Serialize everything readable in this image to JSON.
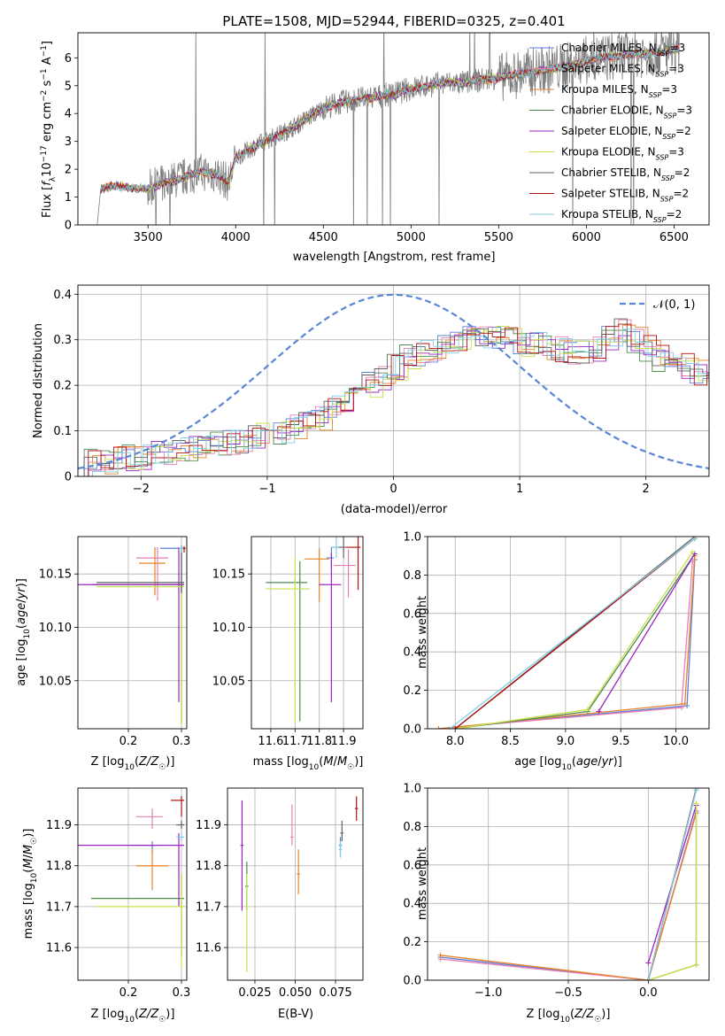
{
  "colors": {
    "Chabrier MILES": "#5a7fd8",
    "Salpeter MILES": "#e87fb4",
    "Kroupa MILES": "#e8832a",
    "Chabrier ELODIE": "#4c8a4c",
    "Salpeter ELODIE": "#9b25c0",
    "Kroupa ELODIE": "#c8e04a",
    "Chabrier STELIB": "#606060",
    "Salpeter STELIB": "#b01010",
    "Kroupa STELIB": "#7fd0e8",
    "data": "#808080",
    "normal": "#5a86d6"
  },
  "chart_data": [
    {
      "type": "line",
      "title": "PLATE=1508, MJD=52944, FIBERID=0325, z=0.401",
      "xlabel": "wavelength [Angstrom, rest frame]",
      "ylabel": "Flux [f_λ 10^-17 erg cm^-2 s^-1 A^-1]",
      "xlim": [
        3100,
        6700
      ],
      "ylim": [
        0,
        6.9
      ],
      "xticks": [
        3500,
        4000,
        4500,
        5000,
        5500,
        6000,
        6500
      ],
      "yticks": [
        0,
        1,
        2,
        3,
        4,
        5,
        6
      ],
      "continuum_x": [
        3210,
        3230,
        3300,
        3400,
        3500,
        3600,
        3700,
        3800,
        3900,
        3960,
        4000,
        4100,
        4200,
        4300,
        4400,
        4500,
        4600,
        4700,
        4800,
        4900,
        5000,
        5100,
        5200,
        5300,
        5400,
        5500,
        5600,
        5700,
        5800,
        5900,
        6000,
        6100,
        6200,
        6300,
        6400,
        6500,
        6530
      ],
      "continuum_y": [
        0.0,
        1.3,
        1.4,
        1.35,
        1.3,
        1.5,
        1.7,
        1.9,
        1.8,
        1.5,
        2.4,
        2.8,
        3.1,
        3.4,
        3.8,
        4.2,
        4.4,
        4.5,
        4.6,
        4.7,
        4.9,
        5.0,
        5.1,
        5.1,
        5.2,
        5.3,
        5.4,
        5.5,
        5.6,
        5.7,
        5.9,
        6.0,
        6.1,
        6.15,
        6.2,
        6.3,
        6.3
      ],
      "legend_position": "upper-right",
      "legend": [
        "Chabrier MILES, N_SSP=3",
        "Salpeter MILES, N_SSP=3",
        "Kroupa MILES, N_SSP=3",
        "Chabrier ELODIE, N_SSP=3",
        "Salpeter ELODIE, N_SSP=2",
        "Kroupa ELODIE, N_SSP=3",
        "Chabrier STELIB, N_SSP=2",
        "Salpeter STELIB, N_SSP=2",
        "Kroupa STELIB, N_SSP=2"
      ]
    },
    {
      "type": "histogram",
      "xlabel": "(data-model)/error",
      "ylabel": "Normed distribution",
      "xlim": [
        -2.5,
        2.5
      ],
      "ylim": [
        0,
        0.42
      ],
      "xticks": [
        -2,
        -1,
        0,
        1,
        2
      ],
      "yticks": [
        0.0,
        0.1,
        0.2,
        0.3,
        0.4
      ],
      "normal_legend": "𝒩(0, 1)",
      "bin_width": 0.1,
      "envelope": [
        0.025,
        0.03,
        0.035,
        0.04,
        0.04,
        0.045,
        0.05,
        0.05,
        0.055,
        0.06,
        0.065,
        0.07,
        0.075,
        0.08,
        0.09,
        0.1,
        0.1,
        0.11,
        0.12,
        0.13,
        0.15,
        0.17,
        0.19,
        0.2,
        0.22,
        0.24,
        0.26,
        0.27,
        0.28,
        0.29,
        0.29,
        0.3,
        0.3,
        0.31,
        0.3,
        0.29,
        0.29,
        0.28,
        0.28,
        0.27,
        0.27,
        0.28,
        0.3,
        0.32,
        0.3,
        0.28,
        0.26,
        0.25,
        0.24,
        0.23,
        0.22,
        0.21,
        0.2,
        0.18,
        0.17,
        0.16,
        0.15,
        0.14,
        0.13,
        0.12,
        0.11,
        0.1,
        0.1,
        0.09,
        0.08,
        0.08,
        0.07,
        0.07,
        0.06,
        0.06
      ]
    },
    {
      "type": "errorbar",
      "xlabel": "Z [log10(Z/Z☉)]",
      "ylabel": "age  [log10(age/yr)]",
      "xlim": [
        0.105,
        0.31
      ],
      "ylim": [
        10.005,
        10.185
      ],
      "xticks": [
        0.2,
        0.3
      ],
      "xtick_labels": [
        "0.2",
        "0.3"
      ],
      "yticks": [
        10.05,
        10.1,
        10.15
      ],
      "ytick_labels": [
        "10.05",
        "10.10",
        "10.15"
      ],
      "points": [
        {
          "series": "Chabrier MILES",
          "x": 0.3,
          "y": 10.174,
          "ex": [
            0.04,
            0.005
          ],
          "ey": [
            0.005,
            0.003
          ]
        },
        {
          "series": "Salpeter MILES",
          "x": 0.255,
          "y": 10.165,
          "ex": [
            0.04,
            0.02
          ],
          "ey": [
            0.04,
            0.01
          ]
        },
        {
          "series": "Kroupa MILES",
          "x": 0.25,
          "y": 10.16,
          "ex": [
            0.03,
            0.02
          ],
          "ey": [
            0.03,
            0.015
          ]
        },
        {
          "series": "Chabrier ELODIE",
          "x": 0.3,
          "y": 10.14,
          "ex": [
            0.17,
            0.005
          ],
          "ey": [
            0.13,
            0.035
          ]
        },
        {
          "series": "Salpeter ELODIE",
          "x": 0.295,
          "y": 10.14,
          "ex": [
            0.19,
            0.01
          ],
          "ey": [
            0.11,
            0.035
          ]
        },
        {
          "series": "Kroupa ELODIE",
          "x": 0.3,
          "y": 10.138,
          "ex": [
            0.16,
            0.005
          ],
          "ey": [
            0.13,
            0.037
          ]
        },
        {
          "series": "Chabrier STELIB",
          "x": 0.3,
          "y": 10.142,
          "ex": [
            0.16,
            0.005
          ],
          "ey": [
            0.01,
            0.033
          ]
        },
        {
          "series": "Salpeter STELIB",
          "x": 0.305,
          "y": 10.174,
          "ex": [
            0.005,
            0.003
          ],
          "ey": [
            0.004,
            0.002
          ]
        },
        {
          "series": "Kroupa STELIB",
          "x": 0.3,
          "y": 10.174,
          "ex": [
            0.005,
            0.003
          ],
          "ey": [
            0.004,
            0.002
          ]
        }
      ]
    },
    {
      "type": "errorbar",
      "xlabel": "mass [log10(M/M☉)]",
      "ylabel": "",
      "xlim": [
        11.52,
        11.98
      ],
      "ylim": [
        10.005,
        10.185
      ],
      "xticks": [
        11.6,
        11.7,
        11.8,
        11.9
      ],
      "xtick_labels": [
        "11.6",
        "11.7",
        "11.8",
        "11.9"
      ],
      "yticks": [
        10.05,
        10.1,
        10.15
      ],
      "ytick_labels": [
        "10.05",
        "10.10",
        "10.15"
      ],
      "points": [
        {
          "series": "Chabrier MILES",
          "x": 11.85,
          "y": 10.165,
          "ex": [
            0.02,
            0.01
          ],
          "ey": [
            0.01,
            0.01
          ]
        },
        {
          "series": "Salpeter MILES",
          "x": 11.92,
          "y": 10.158,
          "ex": [
            0.06,
            0.03
          ],
          "ey": [
            0.03,
            0.015
          ]
        },
        {
          "series": "Kroupa MILES",
          "x": 11.8,
          "y": 10.164,
          "ex": [
            0.06,
            0.04
          ],
          "ey": [
            0.04,
            0.01
          ]
        },
        {
          "series": "Chabrier ELODIE",
          "x": 11.72,
          "y": 10.142,
          "ex": [
            0.14,
            0.03
          ],
          "ey": [
            0.13,
            0.02
          ]
        },
        {
          "series": "Salpeter ELODIE",
          "x": 11.85,
          "y": 10.14,
          "ex": [
            0.05,
            0.04
          ],
          "ey": [
            0.11,
            0.03
          ]
        },
        {
          "series": "Kroupa ELODIE",
          "x": 11.7,
          "y": 10.136,
          "ex": [
            0.12,
            0.06
          ],
          "ey": [
            0.125,
            0.03
          ]
        },
        {
          "series": "Chabrier STELIB",
          "x": 11.9,
          "y": 10.175,
          "ex": [
            0.05,
            0.01
          ],
          "ey": [
            0.01,
            0.01
          ]
        },
        {
          "series": "Salpeter STELIB",
          "x": 11.96,
          "y": 10.175,
          "ex": [
            0.05,
            0.01
          ],
          "ey": [
            0.04,
            0.01
          ]
        },
        {
          "series": "Kroupa STELIB",
          "x": 11.87,
          "y": 10.175,
          "ex": [
            0.02,
            0.01
          ],
          "ey": [
            0.01,
            0.01
          ]
        }
      ]
    },
    {
      "type": "line",
      "xlabel": "age  [log10(age/yr)]",
      "ylabel": "mass weight",
      "xlim": [
        7.75,
        10.3
      ],
      "ylim": [
        0,
        1
      ],
      "xticks": [
        8.0,
        8.5,
        9.0,
        9.5,
        10.0
      ],
      "xtick_labels": [
        "8.0",
        "8.5",
        "9.0",
        "9.5",
        "10.0"
      ],
      "yticks": [
        0,
        0.2,
        0.4,
        0.6,
        0.8,
        1.0
      ],
      "ytick_labels": [
        "0.0",
        "0.2",
        "0.4",
        "0.6",
        "0.8",
        "1.0"
      ],
      "series": [
        {
          "name": "Chabrier MILES",
          "x": [
            7.85,
            10.1,
            10.17
          ],
          "y": [
            0.0,
            0.12,
            0.88
          ]
        },
        {
          "name": "Salpeter MILES",
          "x": [
            7.85,
            10.05,
            10.15
          ],
          "y": [
            0.0,
            0.11,
            0.87
          ]
        },
        {
          "name": "Kroupa MILES",
          "x": [
            7.85,
            10.08,
            10.17
          ],
          "y": [
            0.0,
            0.13,
            0.9
          ]
        },
        {
          "name": "Chabrier ELODIE",
          "x": [
            8.0,
            9.2,
            10.17
          ],
          "y": [
            0.0,
            0.09,
            0.91
          ]
        },
        {
          "name": "Salpeter ELODIE",
          "x": [
            9.3,
            10.17
          ],
          "y": [
            0.09,
            0.91
          ]
        },
        {
          "name": "Kroupa ELODIE",
          "x": [
            8.0,
            9.2,
            10.15
          ],
          "y": [
            0.0,
            0.1,
            0.92
          ]
        },
        {
          "name": "Chabrier STELIB",
          "x": [
            8.0,
            10.17
          ],
          "y": [
            0.0,
            1.0
          ]
        },
        {
          "name": "Salpeter STELIB",
          "x": [
            8.0,
            10.17
          ],
          "y": [
            0.0,
            0.99
          ]
        },
        {
          "name": "Kroupa STELIB",
          "x": [
            7.95,
            10.17
          ],
          "y": [
            0.0,
            0.99
          ]
        }
      ]
    },
    {
      "type": "errorbar",
      "xlabel": "Z [log10(Z/Z☉)]",
      "ylabel": "mass [log10(M/M☉)]",
      "xlim": [
        0.105,
        0.31
      ],
      "ylim": [
        11.52,
        11.99
      ],
      "xticks": [
        0.2,
        0.3
      ],
      "xtick_labels": [
        "0.2",
        "0.3"
      ],
      "yticks": [
        11.6,
        11.7,
        11.8,
        11.9
      ],
      "ytick_labels": [
        "11.6",
        "11.7",
        "11.8",
        "11.9"
      ],
      "points": [
        {
          "series": "Chabrier MILES",
          "x": 0.245,
          "y": 11.85,
          "ex": [
            0.04,
            0.01
          ],
          "ey": [
            0.02,
            0.01
          ]
        },
        {
          "series": "Salpeter MILES",
          "x": 0.245,
          "y": 11.92,
          "ex": [
            0.03,
            0.02
          ],
          "ey": [
            0.03,
            0.02
          ]
        },
        {
          "series": "Kroupa MILES",
          "x": 0.245,
          "y": 11.8,
          "ex": [
            0.03,
            0.03
          ],
          "ey": [
            0.06,
            0.04
          ]
        },
        {
          "series": "Chabrier ELODIE",
          "x": 0.3,
          "y": 11.72,
          "ex": [
            0.17,
            0.005
          ],
          "ey": [
            0.14,
            0.06
          ]
        },
        {
          "series": "Salpeter ELODIE",
          "x": 0.295,
          "y": 11.85,
          "ex": [
            0.19,
            0.01
          ],
          "ey": [
            0.15,
            0.03
          ]
        },
        {
          "series": "Kroupa ELODIE",
          "x": 0.3,
          "y": 11.7,
          "ex": [
            0.16,
            0.005
          ],
          "ey": [
            0.15,
            0.08
          ]
        },
        {
          "series": "Chabrier STELIB",
          "x": 0.3,
          "y": 11.9,
          "ex": [
            0.01,
            0.005
          ],
          "ey": [
            0.01,
            0.01
          ]
        },
        {
          "series": "Salpeter STELIB",
          "x": 0.3,
          "y": 11.96,
          "ex": [
            0.02,
            0.005
          ],
          "ey": [
            0.04,
            0.01
          ]
        },
        {
          "series": "Kroupa STELIB",
          "x": 0.3,
          "y": 11.87,
          "ex": [
            0.01,
            0.005
          ],
          "ey": [
            0.01,
            0.01
          ]
        }
      ]
    },
    {
      "type": "errorbar",
      "xlabel": "E(B-V)",
      "ylabel": "",
      "xlim": [
        0.008,
        0.092
      ],
      "ylim": [
        11.52,
        11.99
      ],
      "xticks": [
        0.025,
        0.05,
        0.075
      ],
      "xtick_labels": [
        "0.025",
        "0.050",
        "0.075"
      ],
      "yticks": [
        11.6,
        11.7,
        11.8,
        11.9
      ],
      "ytick_labels": [
        "11.6",
        "11.7",
        "11.8",
        "11.9"
      ],
      "points": [
        {
          "series": "Chabrier MILES",
          "x": 0.078,
          "y": 11.85,
          "ex": [
            0.001,
            0.001
          ],
          "ey": [
            0.03,
            0.02
          ]
        },
        {
          "series": "Salpeter MILES",
          "x": 0.048,
          "y": 11.87,
          "ex": [
            0.001,
            0.001
          ],
          "ey": [
            0.02,
            0.08
          ]
        },
        {
          "series": "Kroupa MILES",
          "x": 0.052,
          "y": 11.78,
          "ex": [
            0.001,
            0.001
          ],
          "ey": [
            0.05,
            0.06
          ]
        },
        {
          "series": "Chabrier ELODIE",
          "x": 0.02,
          "y": 11.75,
          "ex": [
            0.001,
            0.001
          ],
          "ey": [
            0.06,
            0.06
          ]
        },
        {
          "series": "Salpeter ELODIE",
          "x": 0.017,
          "y": 11.85,
          "ex": [
            0.001,
            0.001
          ],
          "ey": [
            0.16,
            0.11
          ]
        },
        {
          "series": "Kroupa ELODIE",
          "x": 0.02,
          "y": 11.7,
          "ex": [
            0.001,
            0.001
          ],
          "ey": [
            0.16,
            0.08
          ]
        },
        {
          "series": "Chabrier STELIB",
          "x": 0.079,
          "y": 11.88,
          "ex": [
            0.001,
            0.001
          ],
          "ey": [
            0.02,
            0.03
          ]
        },
        {
          "series": "Salpeter STELIB",
          "x": 0.088,
          "y": 11.94,
          "ex": [
            0.001,
            0.001
          ],
          "ey": [
            0.03,
            0.03
          ]
        },
        {
          "series": "Kroupa STELIB",
          "x": 0.078,
          "y": 11.84,
          "ex": [
            0.001,
            0.001
          ],
          "ey": [
            0.02,
            0.02
          ]
        }
      ]
    },
    {
      "type": "line",
      "xlabel": "Z [log10(Z/Z☉)]",
      "ylabel": "mass weight",
      "xlim": [
        -1.38,
        0.38
      ],
      "ylim": [
        0,
        1
      ],
      "xticks": [
        -1.0,
        -0.5,
        0.0
      ],
      "xtick_labels": [
        "−1.0",
        "−0.5",
        "0.0"
      ],
      "yticks": [
        0,
        0.2,
        0.4,
        0.6,
        0.8,
        1.0
      ],
      "ytick_labels": [
        "0.0",
        "0.2",
        "0.4",
        "0.6",
        "0.8",
        "1.0"
      ],
      "series": [
        {
          "name": "Chabrier MILES",
          "x": [
            -1.3,
            0.0,
            0.3
          ],
          "y": [
            0.12,
            0.0,
            0.88
          ]
        },
        {
          "name": "Salpeter MILES",
          "x": [
            -1.3,
            0.0,
            0.3
          ],
          "y": [
            0.11,
            0.0,
            0.87
          ]
        },
        {
          "name": "Kroupa MILES",
          "x": [
            -1.3,
            0.0,
            0.3
          ],
          "y": [
            0.13,
            0.0,
            0.87
          ]
        },
        {
          "name": "Chabrier ELODIE",
          "x": [
            0.0,
            0.3,
            0.3
          ],
          "y": [
            0.0,
            0.08,
            0.91
          ]
        },
        {
          "name": "Salpeter ELODIE",
          "x": [
            0.0,
            0.3
          ],
          "y": [
            0.09,
            0.91
          ]
        },
        {
          "name": "Kroupa ELODIE",
          "x": [
            0.0,
            0.3,
            0.3
          ],
          "y": [
            0.0,
            0.08,
            0.92
          ]
        },
        {
          "name": "Chabrier STELIB",
          "x": [
            0.0,
            0.3
          ],
          "y": [
            0.0,
            1.0
          ]
        },
        {
          "name": "Salpeter STELIB",
          "x": [
            0.0,
            0.3
          ],
          "y": [
            0.0,
            0.99
          ]
        },
        {
          "name": "Kroupa STELIB",
          "x": [
            0.0,
            0.3
          ],
          "y": [
            0.0,
            0.99
          ]
        }
      ]
    }
  ]
}
